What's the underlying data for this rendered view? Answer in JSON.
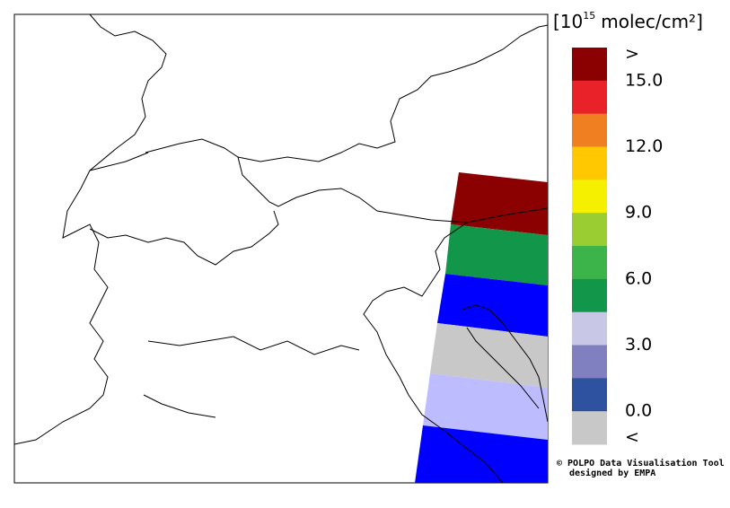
{
  "legend": {
    "title": {
      "prefix": "[10",
      "exponent": "15",
      "unit": "molec/cm²]"
    },
    "colors": [
      "#8b0000",
      "#e82228",
      "#f07f22",
      "#ffc800",
      "#f5f000",
      "#9acd32",
      "#3cb44a",
      "#12964a",
      "#c8c8e6",
      "#8080c0",
      "#2f52a0",
      "#c8c8c8"
    ],
    "labels": [
      ">",
      "15.0",
      "12.0",
      "9.0",
      "6.0",
      "3.0",
      "0.0",
      "<"
    ]
  },
  "credits": [
    "© POLPO Data Visualisation Tool",
    "designed by EMPA"
  ]
}
